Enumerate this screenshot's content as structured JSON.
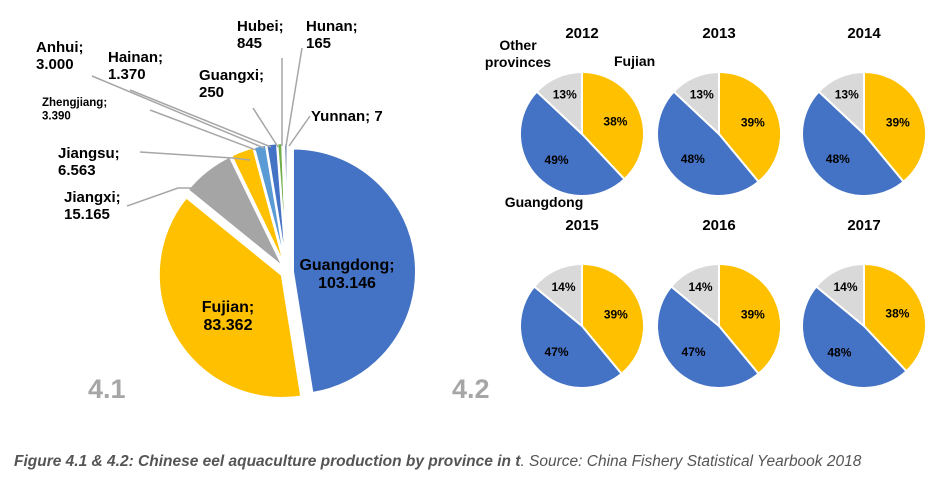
{
  "chart_data": [
    {
      "type": "pie",
      "unit": "t",
      "figure_label": "4.1",
      "slices": [
        {
          "label": "Guangdong;",
          "value_text": "103.146",
          "value": 103146,
          "color": "#4472C4"
        },
        {
          "label": "Fujian;",
          "value_text": "83.362",
          "value": 83362,
          "color": "#FFC000"
        },
        {
          "label": "Jiangxi;",
          "value_text": "15.165",
          "value": 15165,
          "color": "#A5A5A5"
        },
        {
          "label": "Jiangsu;",
          "value_text": "6.563",
          "value": 6563,
          "color": "#FFC000"
        },
        {
          "label": "Zhengjiang;",
          "value_text": "3.390",
          "value": 3390,
          "color": "#5B9BD5"
        },
        {
          "label": "Anhui;",
          "value_text": "3.000",
          "value": 3000,
          "color": "#4472C4"
        },
        {
          "label": "Hainan;",
          "value_text": "1.370",
          "value": 1370,
          "color": "#70AD47"
        },
        {
          "label": "Guangxi;",
          "value_text": "250",
          "value": 250,
          "color": "#A5A5A5"
        },
        {
          "label": "Hubei;",
          "value_text": "845",
          "value": 845,
          "color": "#264478"
        },
        {
          "label": "Hunan;",
          "value_text": "165",
          "value": 165,
          "color": "#9E480E"
        },
        {
          "label": "Yunnan;",
          "value_text": "7",
          "value": 7,
          "color": "#636363"
        }
      ]
    },
    {
      "type": "pie",
      "figure_label": "4.2",
      "legend_labels": {
        "fujian": "Fujian",
        "guangdong": "Guangdong",
        "other": "Other provinces"
      },
      "colors": {
        "fujian": "#FFC000",
        "guangdong": "#4472C4",
        "other": "#D9D9D9"
      },
      "years": [
        {
          "year": "2012",
          "fujian": 38,
          "guangdong": 49,
          "other": 13
        },
        {
          "year": "2013",
          "fujian": 39,
          "guangdong": 48,
          "other": 13
        },
        {
          "year": "2014",
          "fujian": 39,
          "guangdong": 48,
          "other": 13
        },
        {
          "year": "2015",
          "fujian": 39,
          "guangdong": 47,
          "other": 14
        },
        {
          "year": "2016",
          "fujian": 39,
          "guangdong": 47,
          "other": 14
        },
        {
          "year": "2017",
          "fujian": 38,
          "guangdong": 48,
          "other": 14
        }
      ]
    }
  ],
  "caption": {
    "bold": "Figure 4.1 & 4.2: Chinese eel aquaculture production by province in t",
    "rest": ". Source: China Fishery Statistical Yearbook 2018"
  }
}
